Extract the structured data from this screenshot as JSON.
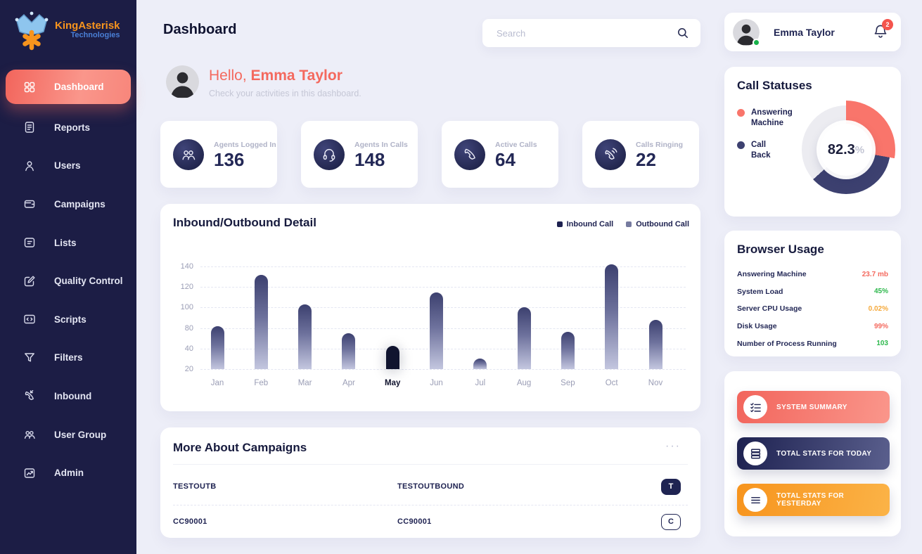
{
  "brand": {
    "line1": "KingAsterisk",
    "line2": "Technologies"
  },
  "sidebar": {
    "items": [
      {
        "label": "Dashboard",
        "icon": "grid",
        "active": true
      },
      {
        "label": "Reports",
        "icon": "report",
        "active": false
      },
      {
        "label": "Users",
        "icon": "user",
        "active": false
      },
      {
        "label": "Campaigns",
        "icon": "wallet",
        "active": false
      },
      {
        "label": "Lists",
        "icon": "list",
        "active": false
      },
      {
        "label": "Quality Control",
        "icon": "edit",
        "active": false
      },
      {
        "label": "Scripts",
        "icon": "code",
        "active": false
      },
      {
        "label": "Filters",
        "icon": "filter",
        "active": false
      },
      {
        "label": "Inbound",
        "icon": "phone-in",
        "active": false
      },
      {
        "label": "User Group",
        "icon": "group",
        "active": false
      },
      {
        "label": "Admin",
        "icon": "chart",
        "active": false
      }
    ]
  },
  "header": {
    "title": "Dashboard",
    "search_placeholder": "Search",
    "user_name": "Emma Taylor",
    "notification_count": "2"
  },
  "greeting": {
    "hello": "Hello,",
    "name": "Emma Taylor",
    "subtitle": "Check your activities in this dashboard."
  },
  "stats": [
    {
      "label": "Agents Logged In",
      "value": "136",
      "icon": "group"
    },
    {
      "label": "Agents In Calls",
      "value": "148",
      "icon": "headset"
    },
    {
      "label": "Active Calls",
      "value": "64",
      "icon": "phone"
    },
    {
      "label": "Calls Ringing",
      "value": "22",
      "icon": "phone-ring"
    }
  ],
  "chart_data": {
    "type": "bar",
    "title": "Inbound/Outbound Detail",
    "legend": [
      {
        "label": "Inbound Call",
        "color": "#1d2150"
      },
      {
        "label": "Outbound Call",
        "color": "#767b9f"
      }
    ],
    "categories": [
      "Jan",
      "Feb",
      "Mar",
      "Apr",
      "May",
      "Jun",
      "Jul",
      "Aug",
      "Sep",
      "Oct",
      "Nov"
    ],
    "values": [
      82,
      132,
      103,
      70,
      45,
      115,
      30,
      100,
      72,
      142,
      88
    ],
    "highlighted_category": "May",
    "y_ticks": [
      140,
      120,
      100,
      80,
      40,
      20
    ],
    "grid": true,
    "xlabel": "",
    "ylabel": ""
  },
  "call_statuses": {
    "title": "Call Statuses",
    "center_value": "82.3",
    "center_unit": "%",
    "legend": [
      {
        "label": "Answering Machine",
        "color": "#f9756b"
      },
      {
        "label": "Call Back",
        "color": "#3d4170"
      }
    ],
    "segments": [
      {
        "name": "Answering Machine",
        "from_deg": 0,
        "to_deg": 100,
        "color": "#f9756b"
      },
      {
        "name": "Call Back",
        "from_deg": 100,
        "to_deg": 228,
        "color": "#3d4170"
      }
    ],
    "track_color": "#ececf1"
  },
  "browser_usage": {
    "title": "Browser Usage",
    "rows": [
      {
        "label": "Answering Machine",
        "value": "23.7 mb",
        "color": "#f4695e"
      },
      {
        "label": "System Load",
        "value": "45%",
        "color": "#2db84c"
      },
      {
        "label": "Server CPU Usage",
        "value": "0.02%",
        "color": "#f5a93b"
      },
      {
        "label": "Disk Usage",
        "value": "99%",
        "color": "#f4695e"
      },
      {
        "label": "Number of Process Running",
        "value": "103",
        "color": "#2db84c"
      }
    ]
  },
  "action_buttons": [
    {
      "label": "SYSTEM SUMMARY",
      "icon": "checklist",
      "gradient": [
        "#f2655c",
        "#fa968b"
      ]
    },
    {
      "label": "TOTAL STATS FOR TODAY",
      "icon": "server",
      "gradient": [
        "#1d2150",
        "#5a5f8d"
      ]
    },
    {
      "label": "TOTAL STATS FOR YESTERDAY",
      "icon": "menu",
      "gradient": [
        "#f7941d",
        "#fbb347"
      ]
    }
  ],
  "campaigns": {
    "title": "More About Campaigns",
    "menu": "···",
    "rows": [
      {
        "col1": "TESTOUTB",
        "col2": "TESTOUTBOUND",
        "badge": "T",
        "badge_style": "filled"
      },
      {
        "col1": "CC90001",
        "col2": "CC90001",
        "badge": "C",
        "badge_style": "outline"
      }
    ]
  }
}
